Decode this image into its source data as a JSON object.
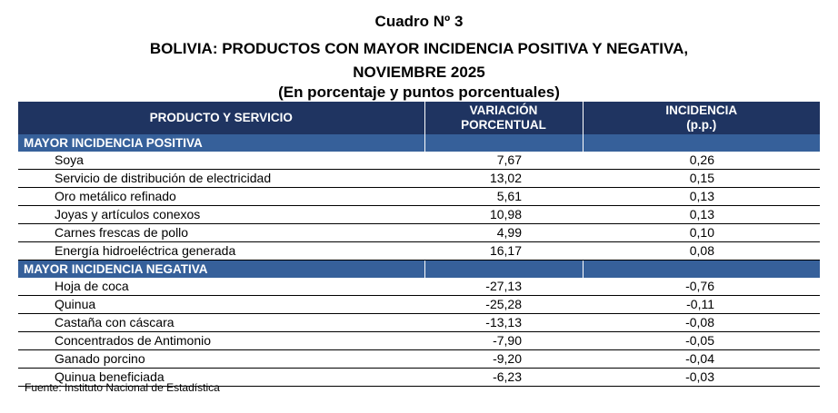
{
  "title": {
    "line1": "Cuadro Nº 3",
    "line2": "BOLIVIA: PRODUCTOS CON MAYOR INCIDENCIA POSITIVA Y NEGATIVA,",
    "line3": "NOVIEMBRE 2025",
    "line4": "(En porcentaje y puntos porcentuales)"
  },
  "headers": {
    "product": "PRODUCTO Y SERVICIO",
    "variation_1": "VARIACIÓN",
    "variation_2": "PORCENTUAL",
    "incidence_1": "INCIDENCIA",
    "incidence_2": "(p.p.)"
  },
  "positive": {
    "label": "MAYOR INCIDENCIA POSITIVA",
    "rows": [
      {
        "name": "Soya",
        "variation": "7,67",
        "incidence": "0,26"
      },
      {
        "name": "Servicio de distribución de electricidad",
        "variation": "13,02",
        "incidence": "0,15"
      },
      {
        "name": "Oro metálico refinado",
        "variation": "5,61",
        "incidence": "0,13"
      },
      {
        "name": "Joyas y artículos conexos",
        "variation": "10,98",
        "incidence": "0,13"
      },
      {
        "name": "Carnes frescas de pollo",
        "variation": "4,99",
        "incidence": "0,10"
      },
      {
        "name": "Energía hidroeléctrica generada",
        "variation": "16,17",
        "incidence": "0,08"
      }
    ]
  },
  "negative": {
    "label": "MAYOR INCIDENCIA NEGATIVA",
    "rows": [
      {
        "name": "Hoja de coca",
        "variation": "-27,13",
        "incidence": "-0,76"
      },
      {
        "name": "Quinua",
        "variation": "-25,28",
        "incidence": "-0,11"
      },
      {
        "name": "Castaña con cáscara",
        "variation": "-13,13",
        "incidence": "-0,08"
      },
      {
        "name": "Concentrados de Antimonio",
        "variation": "-7,90",
        "incidence": "-0,05"
      },
      {
        "name": "Ganado porcino",
        "variation": "-9,20",
        "incidence": "-0,04"
      },
      {
        "name": "Quinua beneficiada",
        "variation": "-6,23",
        "incidence": "-0,03"
      }
    ]
  },
  "source": "Fuente: Instituto Nacional de Estadística"
}
